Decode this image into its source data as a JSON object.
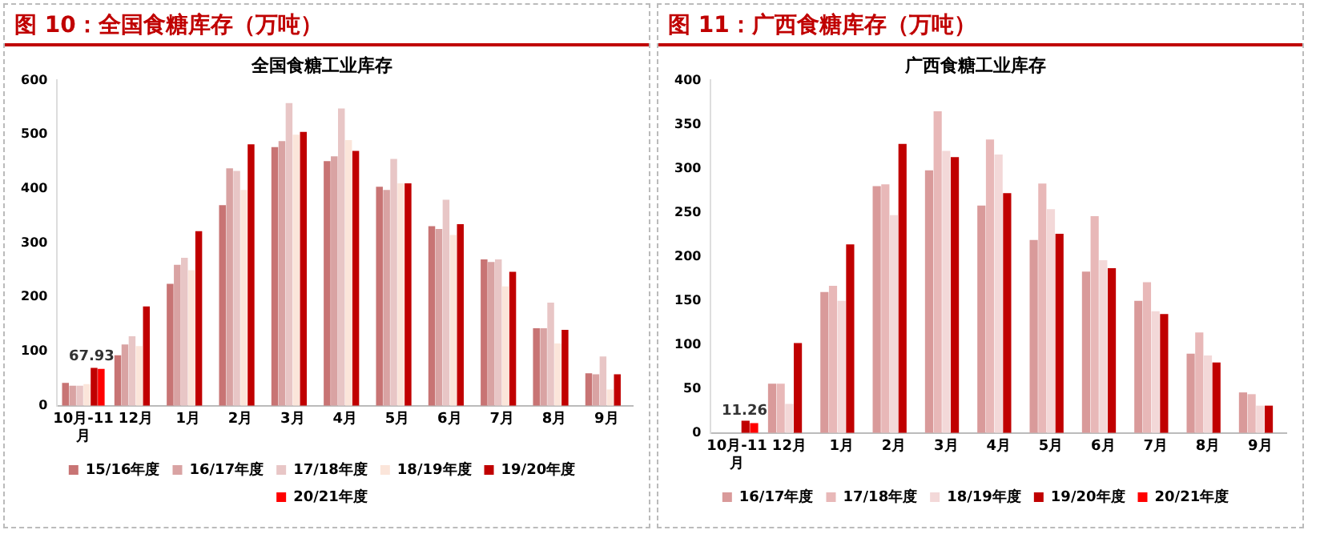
{
  "chart_data": [
    {
      "type": "bar",
      "title": "图 10：全国食糖库存（万吨）",
      "subtitle": "全国食糖工业库存",
      "categories": [
        "10月-11月",
        "12月",
        "1月",
        "2月",
        "3月",
        "4月",
        "5月",
        "6月",
        "7月",
        "8月",
        "9月"
      ],
      "ylim": [
        0,
        600
      ],
      "yticks": [
        0,
        100,
        200,
        300,
        400,
        500,
        600
      ],
      "grid": false,
      "legend": "bottom",
      "series": [
        {
          "name": "15/16年度",
          "color": "#c87474",
          "values": [
            42,
            93,
            225,
            370,
            477,
            451,
            404,
            331,
            270,
            143,
            60
          ]
        },
        {
          "name": "16/17年度",
          "color": "#d9a3a3",
          "values": [
            37,
            113,
            260,
            438,
            488,
            460,
            398,
            326,
            265,
            143,
            58
          ]
        },
        {
          "name": "17/18年度",
          "color": "#e8c6c6",
          "values": [
            37,
            128,
            273,
            433,
            558,
            548,
            455,
            380,
            270,
            190,
            91
          ]
        },
        {
          "name": "18/19年度",
          "color": "#fbe5da",
          "values": [
            40,
            110,
            250,
            398,
            500,
            490,
            410,
            315,
            220,
            115,
            30
          ]
        },
        {
          "name": "19/20年度",
          "color": "#c00000",
          "values": [
            70,
            183,
            322,
            482,
            505,
            470,
            410,
            335,
            247,
            140,
            58
          ]
        },
        {
          "name": "20/21年度",
          "color": "#ff0000",
          "values": [
            67.93,
            null,
            null,
            null,
            null,
            null,
            null,
            null,
            null,
            null,
            null
          ],
          "value_labels": [
            "67.93",
            null,
            null,
            null,
            null,
            null,
            null,
            null,
            null,
            null,
            null
          ]
        }
      ]
    },
    {
      "type": "bar",
      "title": "图 11：广西食糖库存（万吨）",
      "subtitle": "广西食糖工业库存",
      "categories": [
        "10月-11月",
        "12月",
        "1月",
        "2月",
        "3月",
        "4月",
        "5月",
        "6月",
        "7月",
        "8月",
        "9月"
      ],
      "ylim": [
        0,
        400
      ],
      "yticks": [
        0,
        50,
        100,
        150,
        200,
        250,
        300,
        350,
        400
      ],
      "grid": false,
      "legend": "bottom",
      "series": [
        {
          "name": "16/17年度",
          "color": "#d99a9a",
          "values": [
            null,
            56,
            160,
            280,
            298,
            258,
            219,
            183,
            150,
            90,
            46
          ]
        },
        {
          "name": "17/18年度",
          "color": "#e8b8b8",
          "values": [
            null,
            56,
            167,
            282,
            365,
            333,
            283,
            246,
            171,
            114,
            44
          ]
        },
        {
          "name": "18/19年度",
          "color": "#f3d8d8",
          "values": [
            null,
            33,
            150,
            247,
            320,
            316,
            254,
            196,
            138,
            88,
            31
          ]
        },
        {
          "name": "19/20年度",
          "color": "#c00000",
          "values": [
            14,
            102,
            214,
            328,
            313,
            272,
            226,
            187,
            135,
            80,
            31
          ]
        },
        {
          "name": "20/21年度",
          "color": "#ff0000",
          "values": [
            11.26,
            null,
            null,
            null,
            null,
            null,
            null,
            null,
            null,
            null,
            null
          ],
          "value_labels": [
            "11.26",
            null,
            null,
            null,
            null,
            null,
            null,
            null,
            null,
            null,
            null
          ]
        }
      ]
    }
  ]
}
